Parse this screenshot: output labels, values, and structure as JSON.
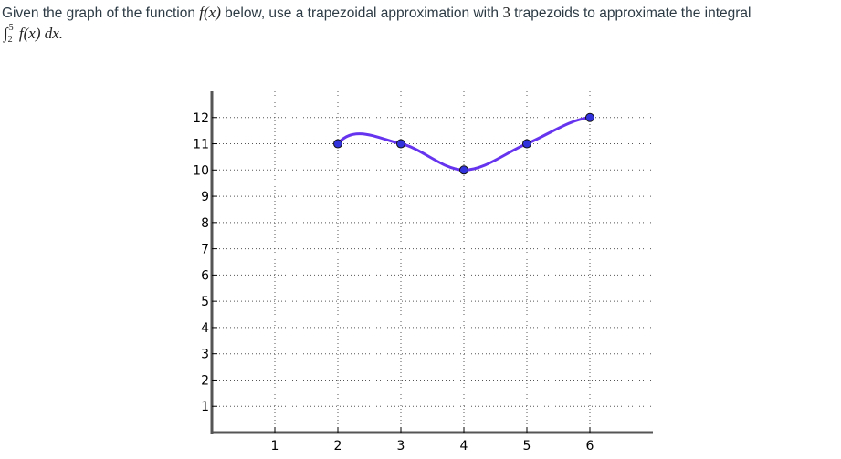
{
  "question": {
    "prefix": "Given the graph of the function ",
    "function": "f(x)",
    "middle": " below, use a trapezoidal approximation with ",
    "count": "3",
    "suffix": " trapezoids to approximate the integral",
    "integral": {
      "sign": "∫",
      "upper": "5",
      "lower": "2",
      "integrand": "f(x) dx."
    }
  },
  "chart_data": {
    "type": "line",
    "title": "",
    "xlabel": "",
    "ylabel": "",
    "xlim": [
      0,
      7
    ],
    "ylim": [
      0,
      13
    ],
    "grid": true,
    "x_ticks": [
      1,
      2,
      3,
      4,
      5,
      6
    ],
    "y_ticks": [
      1,
      2,
      3,
      4,
      5,
      6,
      7,
      8,
      9,
      10,
      11,
      12
    ],
    "series": [
      {
        "color": "#6633ee",
        "points_color": "#3333dd",
        "x": [
          2,
          3,
          4,
          5,
          6
        ],
        "y": [
          11,
          11,
          10,
          11,
          12
        ]
      }
    ],
    "curve_extrema": [
      {
        "x": 2.5,
        "y": 11.45
      }
    ]
  }
}
